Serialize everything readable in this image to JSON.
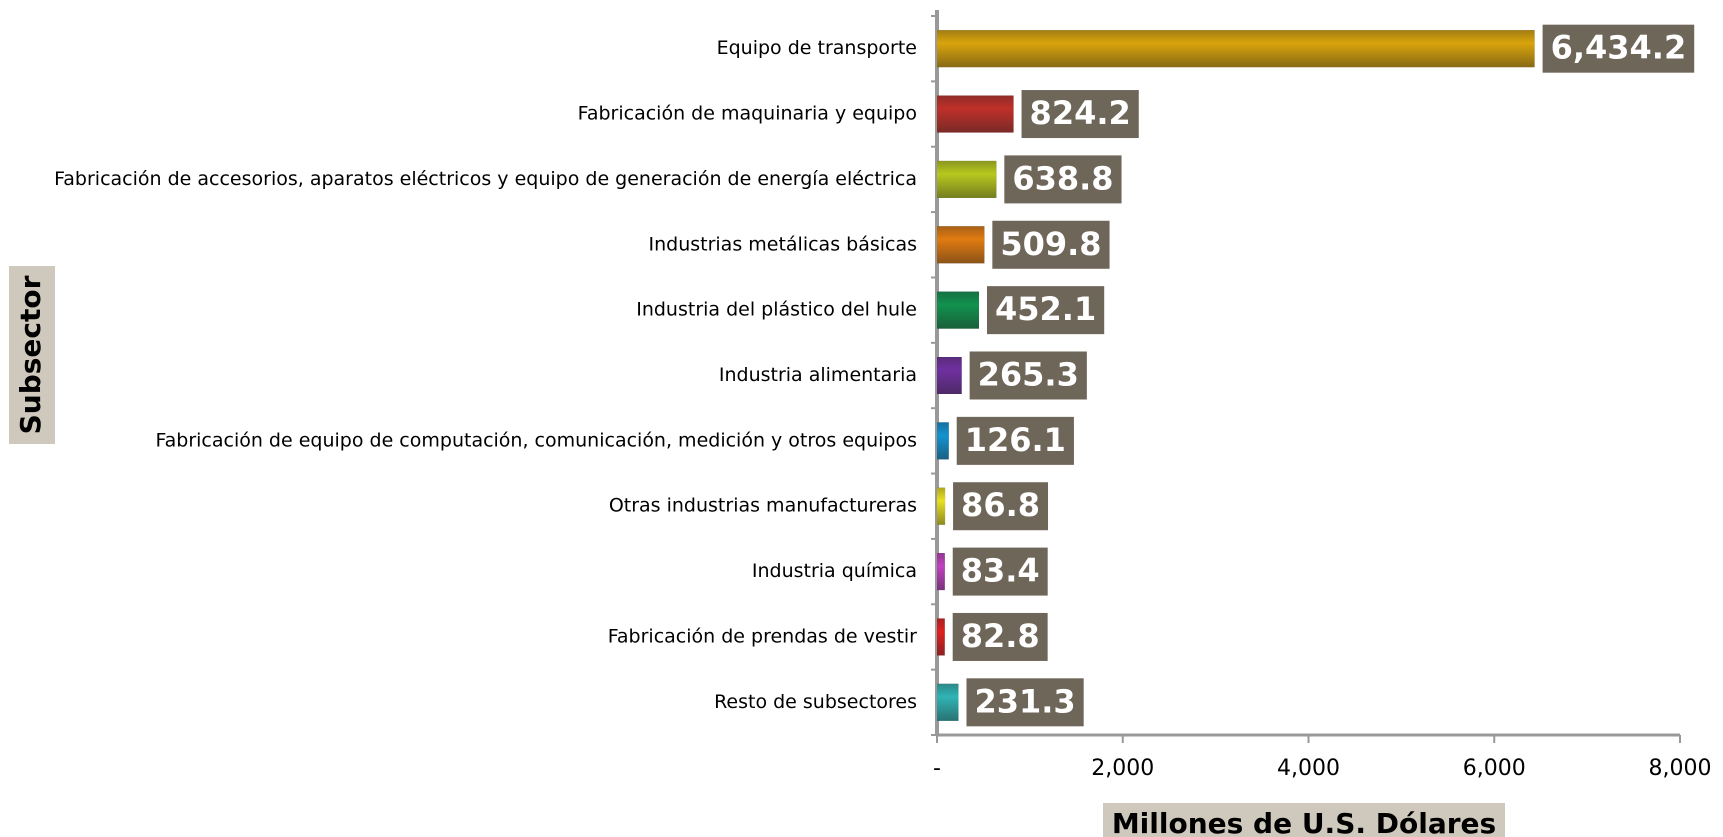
{
  "chart_data": {
    "type": "barh",
    "x_label": "Millones de U.S. Dólares",
    "y_label": "Subsector",
    "categories": [
      "Equipo de transporte",
      "Fabricación de maquinaria y equipo",
      "Fabricación de accesorios, aparatos eléctricos y equipo de generación de energía eléctrica",
      "Industrias metálicas básicas",
      "Industria del plástico del hule",
      "Industria alimentaria",
      "Fabricación de equipo de computación, comunicación, medición y otros equipos",
      "Otras industrias manufactureras",
      "Industria química",
      "Fabricación de prendas de vestir",
      "Resto de subsectores"
    ],
    "values": [
      6434.2,
      824.2,
      638.8,
      509.8,
      452.1,
      265.3,
      126.1,
      86.8,
      83.4,
      82.8,
      231.3
    ],
    "value_labels": [
      "6,434.2",
      "824.2",
      "638.8",
      "509.8",
      "452.1",
      "265.3",
      "126.1",
      "86.8",
      "83.4",
      "82.8",
      "231.3"
    ],
    "colors": [
      "#d9a40c",
      "#c0302a",
      "#b8c81e",
      "#e07b10",
      "#11924f",
      "#7030a0",
      "#1492d2",
      "#e8e020",
      "#c040c0",
      "#e02020",
      "#30b4b4"
    ],
    "xlim": [
      0,
      8000
    ],
    "xticks": [
      {
        "value": 0,
        "label": "-"
      },
      {
        "value": 2000,
        "label": "2,000"
      },
      {
        "value": 4000,
        "label": "4,000"
      },
      {
        "value": 6000,
        "label": "6,000"
      },
      {
        "value": 8000,
        "label": "8,000"
      }
    ]
  }
}
